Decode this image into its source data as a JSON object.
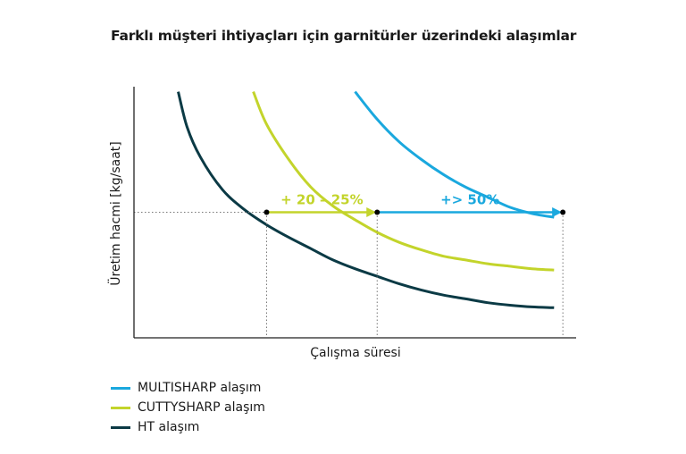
{
  "title": "Farklı müşteri ihtiyaçları için garnitürler üzerindeki alaşımlar",
  "colors": {
    "multisharp": "#1aa8de",
    "cuttysharp": "#c3d42b",
    "ht": "#0b3a45",
    "axis": "#222222",
    "guide": "#777777"
  },
  "chart_data": {
    "type": "line",
    "xlabel": "Çalışma süresi",
    "ylabel": "Üretim hacmi [kg/saat]",
    "xlim": [
      0,
      100
    ],
    "ylim": [
      0,
      100
    ],
    "grid": false,
    "legend_position": "bottom-left",
    "series": [
      {
        "name": "MULTISHARP alaşım",
        "color": "#1aa8de",
        "points": [
          [
            50,
            98
          ],
          [
            55,
            87
          ],
          [
            60,
            78
          ],
          [
            65,
            71
          ],
          [
            70,
            65
          ],
          [
            75,
            60
          ],
          [
            80,
            56
          ],
          [
            85,
            52
          ],
          [
            90,
            49.5
          ],
          [
            95,
            48
          ]
        ]
      },
      {
        "name": "CUTTYSHARP alaşım",
        "color": "#c3d42b",
        "points": [
          [
            27,
            98
          ],
          [
            30,
            85
          ],
          [
            35,
            71
          ],
          [
            40,
            60
          ],
          [
            45,
            52.5
          ],
          [
            50,
            47
          ],
          [
            55,
            42
          ],
          [
            60,
            38
          ],
          [
            65,
            35
          ],
          [
            70,
            32.5
          ],
          [
            75,
            31
          ],
          [
            80,
            29.5
          ],
          [
            85,
            28.5
          ],
          [
            90,
            27.5
          ],
          [
            95,
            27
          ]
        ]
      },
      {
        "name": "HT alaşım",
        "color": "#0b3a45",
        "points": [
          [
            10,
            98
          ],
          [
            12,
            84
          ],
          [
            15,
            72
          ],
          [
            20,
            59
          ],
          [
            25,
            51
          ],
          [
            30,
            45
          ],
          [
            35,
            40
          ],
          [
            40,
            35.5
          ],
          [
            45,
            31
          ],
          [
            50,
            27.5
          ],
          [
            55,
            24.5
          ],
          [
            60,
            21.5
          ],
          [
            65,
            19
          ],
          [
            70,
            17
          ],
          [
            75,
            15.5
          ],
          [
            80,
            14
          ],
          [
            85,
            13
          ],
          [
            90,
            12.3
          ],
          [
            95,
            12
          ]
        ]
      }
    ],
    "reference_level": 50,
    "markers": [
      {
        "x": 30,
        "y": 50
      },
      {
        "x": 55,
        "y": 50
      },
      {
        "x": 97,
        "y": 50
      }
    ],
    "annotations": [
      {
        "text": "+ 20 – 25%",
        "from_x": 30,
        "to_x": 55,
        "y": 50,
        "color": "#c3d42b"
      },
      {
        "text": "+> 50%",
        "from_x": 55,
        "to_x": 97,
        "y": 50,
        "color": "#1aa8de"
      }
    ]
  },
  "legend": {
    "items": [
      {
        "label": "MULTISHARP alaşım",
        "color": "#1aa8de"
      },
      {
        "label": "CUTTYSHARP alaşım",
        "color": "#c3d42b"
      },
      {
        "label": "HT alaşım",
        "color": "#0b3a45"
      }
    ]
  }
}
